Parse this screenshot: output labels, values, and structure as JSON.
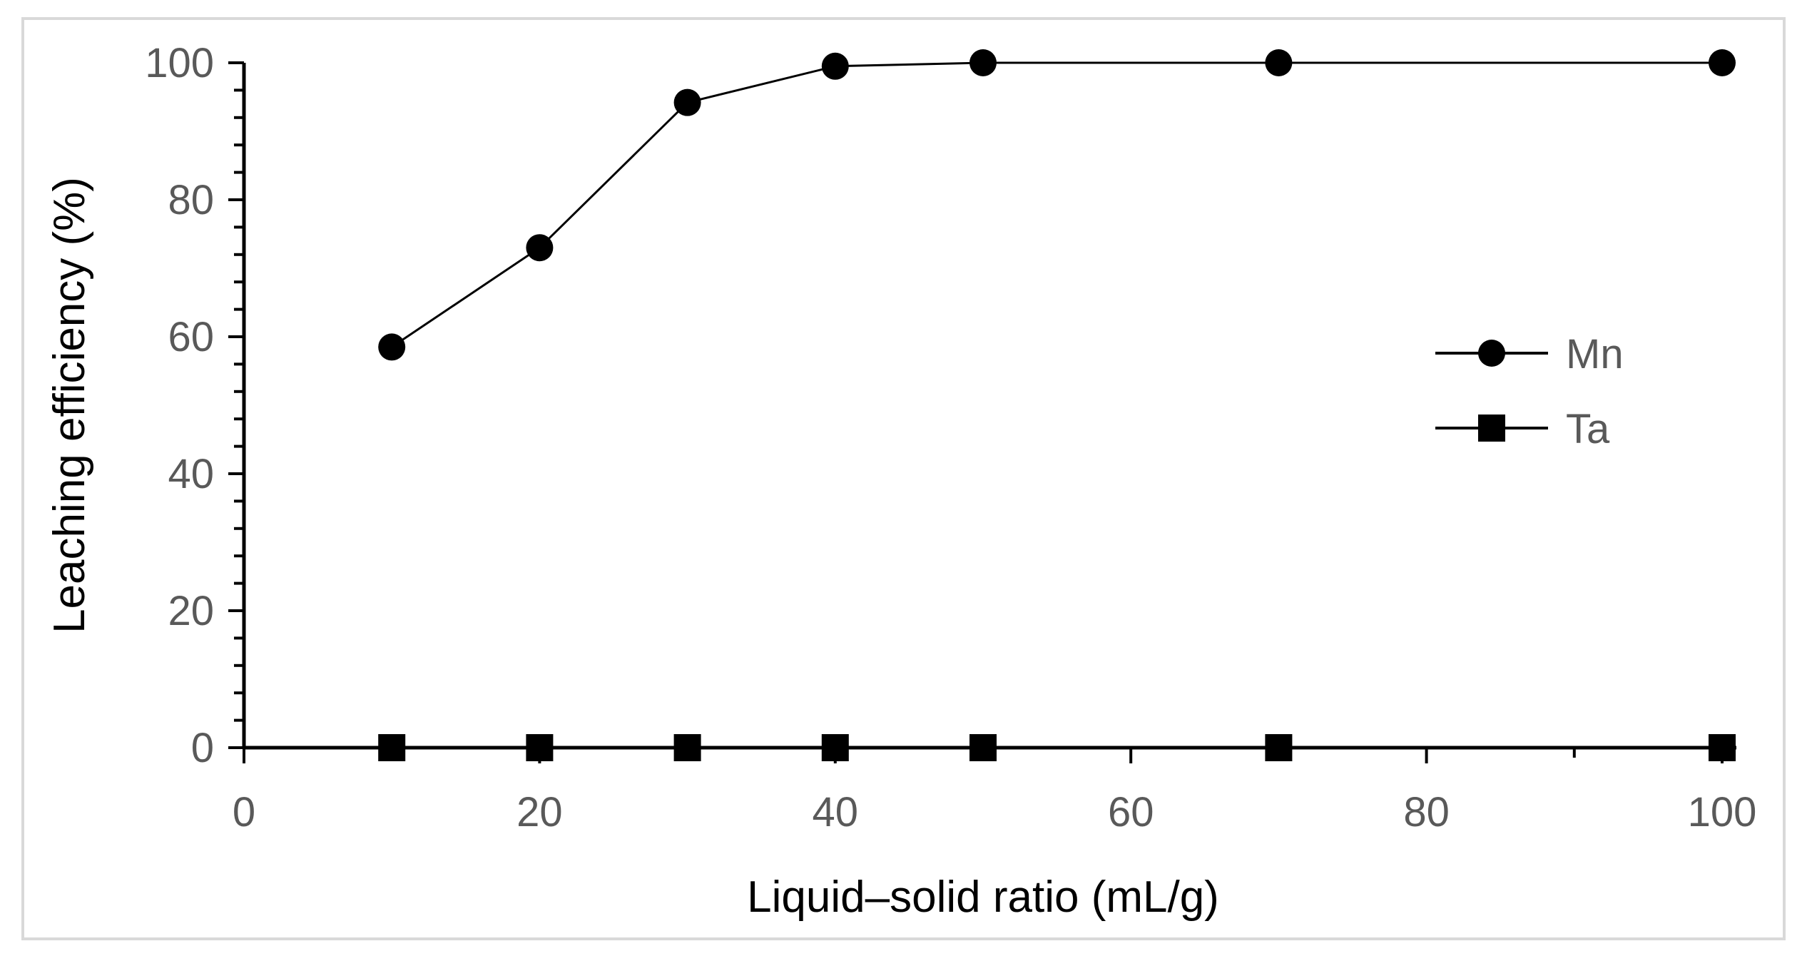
{
  "chart_data": {
    "type": "line",
    "title": "",
    "xlabel": "Liquid–solid ratio (mL/g)",
    "ylabel": "Leaching efficiency (%)",
    "xlim": [
      0,
      100
    ],
    "ylim": [
      0,
      100
    ],
    "x_ticks": [
      0,
      20,
      40,
      60,
      80,
      100
    ],
    "y_ticks": [
      0,
      20,
      40,
      60,
      80,
      100
    ],
    "x_tick_labels": [
      "0",
      "20",
      "40",
      "60",
      "80",
      "100"
    ],
    "y_tick_labels": [
      "0",
      "20",
      "40",
      "60",
      "80",
      "100"
    ],
    "grid": false,
    "legend_position": "right",
    "series": [
      {
        "name": "Mn",
        "marker": "circle",
        "color": "#000000",
        "x": [
          10,
          20,
          30,
          40,
          50,
          70,
          100
        ],
        "y": [
          58.5,
          73,
          94.2,
          99.5,
          100,
          100,
          100
        ]
      },
      {
        "name": "Ta",
        "marker": "square",
        "color": "#000000",
        "x": [
          10,
          20,
          30,
          40,
          50,
          70,
          100
        ],
        "y": [
          0,
          0,
          0,
          0,
          0,
          0,
          0
        ]
      }
    ]
  },
  "frame": {
    "border_color": "#d9d9d9",
    "axis_color": "#000000",
    "tick_label_color": "#595959"
  }
}
